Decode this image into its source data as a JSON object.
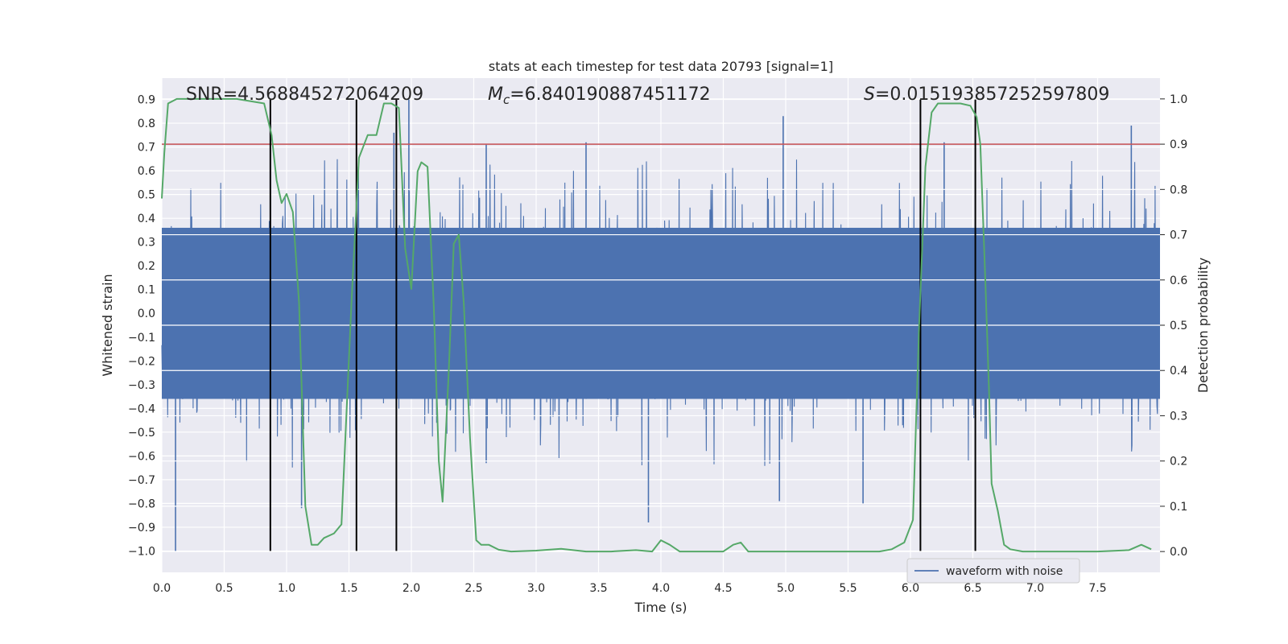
{
  "chart_data": {
    "type": "line",
    "title": "stats at each timestep for test data 20793 [signal=1]",
    "xlabel": "Time (s)",
    "ylabel": "Whitened strain",
    "ylabel_right": "Detection probability",
    "xlim": [
      0.0,
      8.0
    ],
    "ylim": [
      -1.09,
      0.99
    ],
    "ylim_right": [
      -0.046,
      1.046
    ],
    "x_ticks": [
      0.0,
      0.5,
      1.0,
      1.5,
      2.0,
      2.5,
      3.0,
      3.5,
      4.0,
      4.5,
      5.0,
      5.5,
      6.0,
      6.5,
      7.0,
      7.5
    ],
    "x_tick_labels": [
      "0.0",
      "0.5",
      "1.0",
      "1.5",
      "2.0",
      "2.5",
      "3.0",
      "3.5",
      "4.0",
      "4.5",
      "5.0",
      "5.5",
      "6.0",
      "6.5",
      "7.0",
      "7.5"
    ],
    "y_ticks": [
      0.9,
      0.8,
      0.7,
      0.6,
      0.5,
      0.4,
      0.3,
      0.2,
      0.1,
      0.0,
      -0.1,
      -0.2,
      -0.3,
      -0.4,
      -0.5,
      -0.6,
      -0.7,
      -0.8,
      -0.9,
      -1.0
    ],
    "y_tick_labels": [
      "0.9",
      "0.8",
      "0.7",
      "0.6",
      "0.5",
      "0.4",
      "0.3",
      "0.2",
      "0.1",
      "0.0",
      "−0.1",
      "−0.2",
      "−0.3",
      "−0.4",
      "−0.5",
      "−0.6",
      "−0.7",
      "−0.8",
      "−0.9",
      "−1.0"
    ],
    "y_ticks_right": [
      1.0,
      0.9,
      0.8,
      0.7,
      0.6,
      0.5,
      0.4,
      0.3,
      0.2,
      0.1,
      0.0
    ],
    "y_tick_labels_right": [
      "1.0",
      "0.9",
      "0.8",
      "0.7",
      "0.6",
      "0.5",
      "0.4",
      "0.3",
      "0.2",
      "0.1",
      "0.0"
    ],
    "annotations": {
      "snr": "SNR=4.568845272064209",
      "mc_symbol": "M",
      "mc_subscript": "c",
      "mc_value": "=6.840190887451172",
      "s_symbol": "S",
      "s_value": "=0.015193857252597809"
    },
    "threshold_probability": 0.9,
    "vertical_lines_x": [
      0.87,
      1.56,
      1.88,
      6.08,
      6.52
    ],
    "legend": {
      "label": "waveform with noise",
      "location": "lower-right"
    },
    "colors": {
      "waveform": "#4c72b0",
      "probability": "#55a868",
      "threshold": "#c44e52",
      "markers": "#000000",
      "axes_bg": "#eaeaf2",
      "grid": "#ffffff",
      "text": "#262626"
    },
    "series": [
      {
        "name": "waveform with noise",
        "axis": "left",
        "description": "dense whitened strain noise, typical envelope ±0.45 with spikes up to 0.9 and down to -1.0",
        "spikes_up": [
          [
            0.87,
            0.84
          ],
          [
            1.98,
            0.9
          ],
          [
            4.98,
            0.83
          ],
          [
            7.77,
            0.79
          ],
          [
            1.86,
            0.76
          ],
          [
            3.4,
            0.72
          ],
          [
            2.6,
            0.71
          ],
          [
            6.27,
            0.72
          ]
        ],
        "spikes_down": [
          [
            0.11,
            -1.0
          ],
          [
            1.12,
            -0.82
          ],
          [
            3.9,
            -0.88
          ],
          [
            4.95,
            -0.79
          ],
          [
            2.6,
            -0.63
          ],
          [
            5.62,
            -0.8
          ]
        ]
      },
      {
        "name": "detection probability",
        "axis": "right",
        "x": [
          0.0,
          0.02,
          0.05,
          0.12,
          0.2,
          0.4,
          0.6,
          0.82,
          0.88,
          0.92,
          0.96,
          1.0,
          1.05,
          1.1,
          1.15,
          1.2,
          1.25,
          1.3,
          1.38,
          1.44,
          1.52,
          1.58,
          1.65,
          1.72,
          1.78,
          1.84,
          1.9,
          1.95,
          2.0,
          2.05,
          2.08,
          2.13,
          2.18,
          2.22,
          2.25,
          2.3,
          2.34,
          2.38,
          2.42,
          2.47,
          2.52,
          2.56,
          2.62,
          2.7,
          2.8,
          3.0,
          3.2,
          3.4,
          3.6,
          3.8,
          3.93,
          4.0,
          4.07,
          4.15,
          4.3,
          4.5,
          4.58,
          4.64,
          4.7,
          4.8,
          5.0,
          5.3,
          5.6,
          5.75,
          5.85,
          5.95,
          6.02,
          6.07,
          6.12,
          6.17,
          6.22,
          6.3,
          6.4,
          6.48,
          6.53,
          6.56,
          6.6,
          6.63,
          6.65,
          6.7,
          6.75,
          6.8,
          6.9,
          7.2,
          7.5,
          7.75,
          7.85,
          7.93
        ],
        "values": [
          0.78,
          0.88,
          0.99,
          1.0,
          1.0,
          1.0,
          1.0,
          0.99,
          0.92,
          0.82,
          0.77,
          0.79,
          0.75,
          0.55,
          0.1,
          0.015,
          0.015,
          0.03,
          0.04,
          0.06,
          0.55,
          0.87,
          0.92,
          0.92,
          0.99,
          0.99,
          0.98,
          0.67,
          0.58,
          0.84,
          0.86,
          0.85,
          0.54,
          0.2,
          0.11,
          0.4,
          0.68,
          0.7,
          0.55,
          0.25,
          0.025,
          0.015,
          0.015,
          0.004,
          0.0,
          0.002,
          0.006,
          0.0,
          0.0,
          0.003,
          0.0,
          0.025,
          0.015,
          0.0,
          0.0,
          0.0,
          0.015,
          0.02,
          0.0,
          0.0,
          0.0,
          0.0,
          0.0,
          0.0,
          0.005,
          0.02,
          0.07,
          0.5,
          0.85,
          0.97,
          0.99,
          0.99,
          0.99,
          0.985,
          0.96,
          0.9,
          0.6,
          0.35,
          0.15,
          0.09,
          0.015,
          0.005,
          0.0,
          0.0,
          0.0,
          0.003,
          0.015,
          0.005
        ]
      }
    ]
  }
}
